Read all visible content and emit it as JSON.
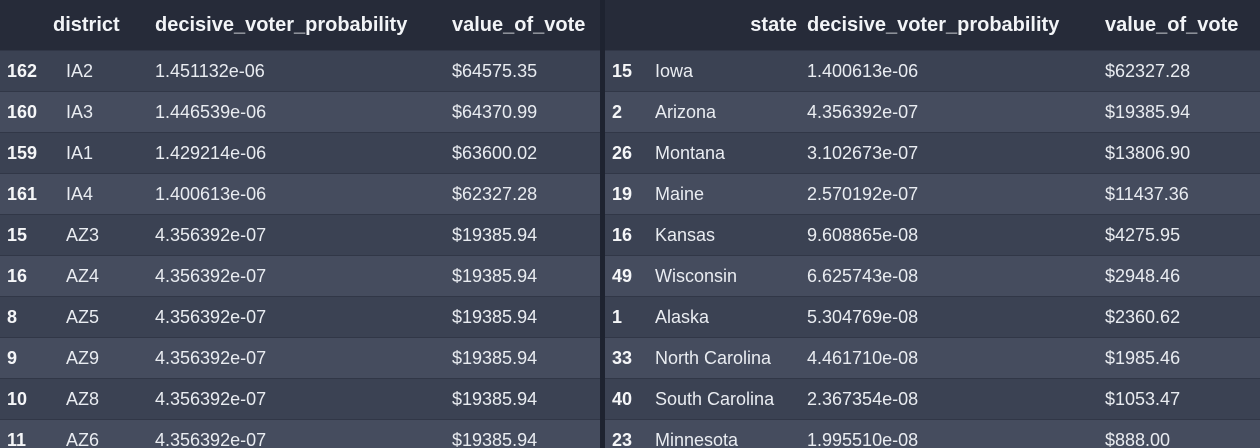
{
  "left_table": {
    "columns": [
      "",
      "district",
      "decisive_voter_probability",
      "value_of_vote"
    ],
    "rows": [
      {
        "index": "162",
        "district": "IA2",
        "prob": "1.451132e-06",
        "value": "$64575.35"
      },
      {
        "index": "160",
        "district": "IA3",
        "prob": "1.446539e-06",
        "value": "$64370.99"
      },
      {
        "index": "159",
        "district": "IA1",
        "prob": "1.429214e-06",
        "value": "$63600.02"
      },
      {
        "index": "161",
        "district": "IA4",
        "prob": "1.400613e-06",
        "value": "$62327.28"
      },
      {
        "index": "15",
        "district": "AZ3",
        "prob": "4.356392e-07",
        "value": "$19385.94"
      },
      {
        "index": "16",
        "district": "AZ4",
        "prob": "4.356392e-07",
        "value": "$19385.94"
      },
      {
        "index": "8",
        "district": "AZ5",
        "prob": "4.356392e-07",
        "value": "$19385.94"
      },
      {
        "index": "9",
        "district": "AZ9",
        "prob": "4.356392e-07",
        "value": "$19385.94"
      },
      {
        "index": "10",
        "district": "AZ8",
        "prob": "4.356392e-07",
        "value": "$19385.94"
      },
      {
        "index": "11",
        "district": "AZ6",
        "prob": "4.356392e-07",
        "value": "$19385.94"
      }
    ]
  },
  "right_table": {
    "columns": [
      "",
      "state",
      "decisive_voter_probability",
      "value_of_vote"
    ],
    "rows": [
      {
        "index": "15",
        "state": "Iowa",
        "prob": "1.400613e-06",
        "value": "$62327.28"
      },
      {
        "index": "2",
        "state": "Arizona",
        "prob": "4.356392e-07",
        "value": "$19385.94"
      },
      {
        "index": "26",
        "state": "Montana",
        "prob": "3.102673e-07",
        "value": "$13806.90"
      },
      {
        "index": "19",
        "state": "Maine",
        "prob": "2.570192e-07",
        "value": "$11437.36"
      },
      {
        "index": "16",
        "state": "Kansas",
        "prob": "9.608865e-08",
        "value": "$4275.95"
      },
      {
        "index": "49",
        "state": "Wisconsin",
        "prob": "6.625743e-08",
        "value": "$2948.46"
      },
      {
        "index": "1",
        "state": "Alaska",
        "prob": "5.304769e-08",
        "value": "$2360.62"
      },
      {
        "index": "33",
        "state": "North Carolina",
        "prob": "4.461710e-08",
        "value": "$1985.46"
      },
      {
        "index": "40",
        "state": "South Carolina",
        "prob": "2.367354e-08",
        "value": "$1053.47"
      },
      {
        "index": "23",
        "state": "Minnesota",
        "prob": "1.995510e-08",
        "value": "$888.00"
      }
    ]
  },
  "colors": {
    "background": "#1e2330",
    "header": "#262b39",
    "row_odd": "#3b4253",
    "row_even": "#454c5e",
    "text": "#e9ecf1"
  }
}
